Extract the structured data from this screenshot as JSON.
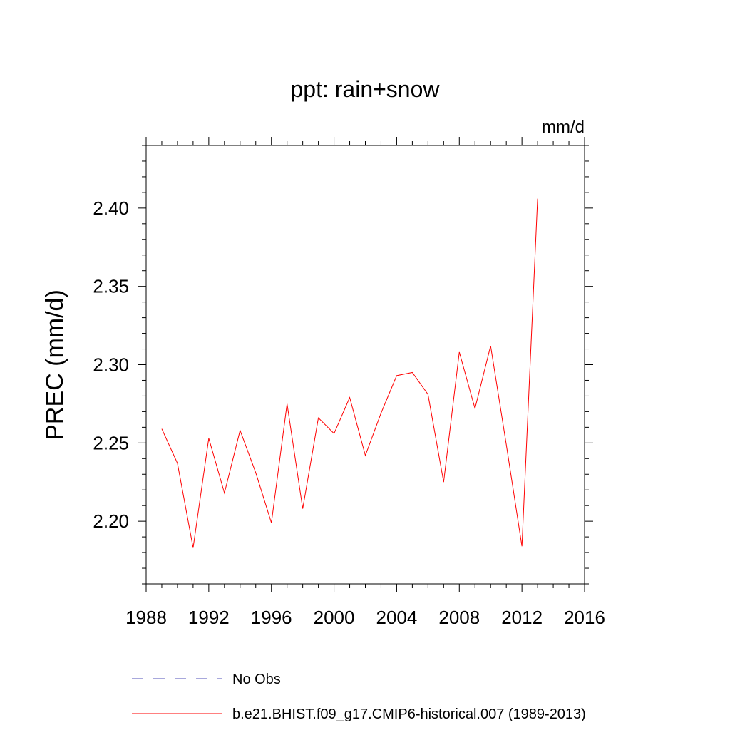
{
  "chart_data": {
    "type": "line",
    "title": "ppt: rain+snow",
    "units_label": "mm/d",
    "ylabel": "PREC  (mm/d)",
    "xlabel": "",
    "xlim": [
      1988,
      2016
    ],
    "ylim": [
      2.16,
      2.44
    ],
    "x_ticks": [
      1988,
      1992,
      1996,
      2000,
      2004,
      2008,
      2012,
      2016
    ],
    "y_ticks": [
      2.2,
      2.25,
      2.3,
      2.35,
      2.4
    ],
    "y_tick_labels": [
      "2.20",
      "2.25",
      "2.30",
      "2.35",
      "2.40"
    ],
    "grid": false,
    "legend_position": "bottom",
    "series": [
      {
        "name": "No Obs",
        "color": "#5050b8",
        "dash": "dashed",
        "x": [],
        "values": []
      },
      {
        "name": "b.e21.BHIST.f09_g17.CMIP6-historical.007 (1989-2013)",
        "color": "#ff0000",
        "dash": "solid",
        "x": [
          1989,
          1990,
          1991,
          1992,
          1993,
          1994,
          1995,
          1996,
          1997,
          1998,
          1999,
          2000,
          2001,
          2002,
          2003,
          2004,
          2005,
          2006,
          2007,
          2008,
          2009,
          2010,
          2011,
          2012,
          2013
        ],
        "values": [
          2.259,
          2.237,
          2.183,
          2.253,
          2.218,
          2.258,
          2.231,
          2.199,
          2.275,
          2.208,
          2.266,
          2.256,
          2.279,
          2.242,
          2.269,
          2.293,
          2.295,
          2.281,
          2.225,
          2.308,
          2.272,
          2.312,
          2.249,
          2.184,
          2.406
        ]
      }
    ]
  }
}
